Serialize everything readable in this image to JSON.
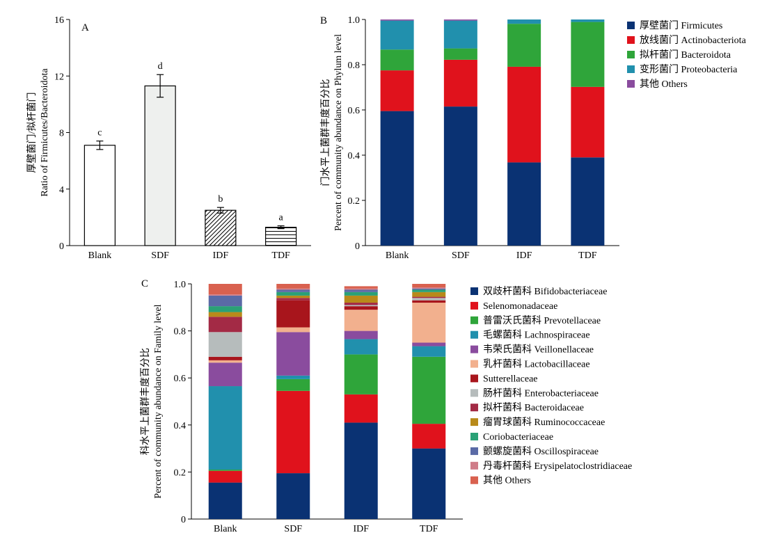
{
  "chart_data": [
    {
      "panel": "A",
      "type": "bar",
      "categories": [
        "Blank",
        "SDF",
        "IDF",
        "TDF"
      ],
      "values": [
        7.1,
        11.3,
        2.5,
        1.3
      ],
      "errors": [
        0.3,
        0.8,
        0.2,
        0.1
      ],
      "significance": [
        "c",
        "d",
        "b",
        "a"
      ],
      "ylabel_zh": "厚壁菌门/拟杆菌门",
      "ylabel_en": "Ratio of Firmicutes/Bacteroidota",
      "ylim": [
        0,
        16
      ],
      "yticks": [
        "0",
        "4",
        "8",
        "12",
        "16"
      ],
      "fills": [
        "white",
        "light-gray",
        "diagonal-hatch",
        "horizontal-hatch"
      ]
    },
    {
      "panel": "B",
      "type": "bar",
      "stacked": true,
      "categories": [
        "Blank",
        "SDF",
        "IDF",
        "TDF"
      ],
      "ylabel_zh": "门水平上菌群丰度百分比",
      "ylabel_en": "Percent of community abundance on Phylum level",
      "ylim": [
        0,
        1.0
      ],
      "yticks": [
        "0",
        "0.2",
        "0.4",
        "0.6",
        "0.8",
        "1.0"
      ],
      "legend_position": "right",
      "series": [
        {
          "name": "厚壁菌门 Firmicutes",
          "color": "#0a3273",
          "values": [
            0.595,
            0.615,
            0.368,
            0.39
          ]
        },
        {
          "name": "放线菌门 Actinobacteriota",
          "color": "#e0121c",
          "values": [
            0.18,
            0.207,
            0.423,
            0.312
          ]
        },
        {
          "name": "拟杆菌门 Bacteroidota",
          "color": "#2fa53a",
          "values": [
            0.092,
            0.05,
            0.19,
            0.287
          ]
        },
        {
          "name": "变形菌门 Proteobacteria",
          "color": "#2190ad",
          "values": [
            0.128,
            0.123,
            0.019,
            0.011
          ]
        },
        {
          "name": "其他 Others",
          "color": "#8a4c9e",
          "values": [
            0.005,
            0.005,
            0.0,
            0.0
          ]
        }
      ]
    },
    {
      "panel": "C",
      "type": "bar",
      "stacked": true,
      "categories": [
        "Blank",
        "SDF",
        "IDF",
        "TDF"
      ],
      "ylabel_zh": "科水平上菌群丰度百分比",
      "ylabel_en": "Percent of community abundance on Family level",
      "ylim": [
        0,
        1.0
      ],
      "yticks": [
        "0",
        "0.2",
        "0.4",
        "0.6",
        "0.8",
        "1.0"
      ],
      "legend_position": "right",
      "series": [
        {
          "name": "双歧杆菌科 Bifidobacteriaceae",
          "color": "#0a3273",
          "values": [
            0.155,
            0.195,
            0.41,
            0.3
          ]
        },
        {
          "name": "Selenomonadaceae",
          "color": "#e0121c",
          "values": [
            0.05,
            0.35,
            0.12,
            0.105
          ]
        },
        {
          "name": "普雷沃氏菌科 Prevotellaceae",
          "color": "#2fa53a",
          "values": [
            0.005,
            0.05,
            0.17,
            0.285
          ]
        },
        {
          "name": "毛螺菌科 Lachnospiraceae",
          "color": "#2190ad",
          "values": [
            0.355,
            0.015,
            0.065,
            0.045
          ]
        },
        {
          "name": "韦荣氏菌科 Veillonellaceae",
          "color": "#8a4c9e",
          "values": [
            0.1,
            0.185,
            0.035,
            0.015
          ]
        },
        {
          "name": "乳杆菌科 Lactobacillaceae",
          "color": "#f2b08e",
          "values": [
            0.01,
            0.02,
            0.09,
            0.17
          ]
        },
        {
          "name": "Sutterellaceae",
          "color": "#a8151c",
          "values": [
            0.015,
            0.115,
            0.015,
            0.01
          ]
        },
        {
          "name": "肠杆菌科 Enterobacteriaceae",
          "color": "#b6bcbc",
          "values": [
            0.105,
            0.0,
            0.005,
            0.01
          ]
        },
        {
          "name": "拟杆菌科 Bacteroidaceae",
          "color": "#a32a45",
          "values": [
            0.065,
            0.01,
            0.01,
            0.005
          ]
        },
        {
          "name": "瘤胃球菌科 Ruminococcaceae",
          "color": "#b88a1a",
          "values": [
            0.02,
            0.01,
            0.03,
            0.02
          ]
        },
        {
          "name": "Coriobacteriaceae",
          "color": "#2aa176",
          "values": [
            0.025,
            0.015,
            0.015,
            0.01
          ]
        },
        {
          "name": "颤螺旋菌科 Oscillospiraceae",
          "color": "#5a6aa6",
          "values": [
            0.045,
            0.01,
            0.01,
            0.005
          ]
        },
        {
          "name": "丹毒杆菌科 Erysipelatoclostridiaceae",
          "color": "#cf7c88",
          "values": [
            0.005,
            0.005,
            0.005,
            0.005
          ]
        },
        {
          "name": "其他 Others",
          "color": "#d9614f",
          "values": [
            0.045,
            0.02,
            0.01,
            0.015
          ]
        }
      ]
    }
  ]
}
